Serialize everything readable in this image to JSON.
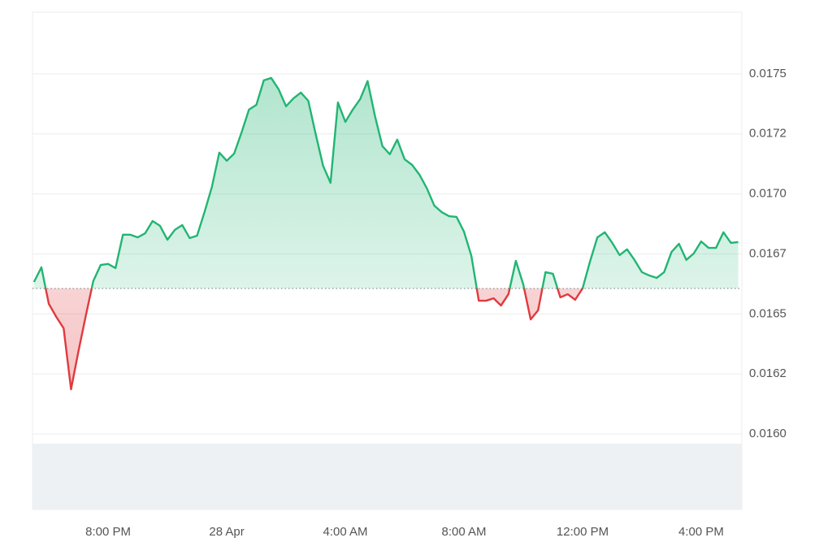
{
  "chart_data": {
    "type": "line",
    "x": [
      17.5,
      17.75,
      18,
      18.25,
      18.5,
      18.75,
      19,
      19.25,
      19.5,
      19.75,
      20,
      20.25,
      20.5,
      20.75,
      21,
      21.25,
      21.5,
      21.75,
      22,
      22.25,
      22.5,
      22.75,
      23,
      23.25,
      23.5,
      23.75,
      24,
      24.25,
      24.5,
      24.75,
      25,
      25.25,
      25.5,
      25.75,
      26,
      26.25,
      26.5,
      26.75,
      27,
      27.25,
      27.5,
      27.75,
      28,
      28.25,
      28.5,
      28.75,
      29,
      29.25,
      29.5,
      29.75,
      30,
      30.25,
      30.5,
      30.75,
      31,
      31.25,
      31.5,
      31.75,
      32,
      32.25,
      32.5,
      32.75,
      33,
      33.25,
      33.5,
      33.75,
      34,
      34.25,
      34.5,
      34.75,
      35,
      35.25,
      35.5,
      35.75,
      36,
      36.25,
      36.5,
      36.75,
      37,
      37.25,
      37.5,
      37.75,
      38,
      38.25,
      38.5,
      38.75,
      39,
      39.25,
      39.5,
      39.75,
      40,
      40.25,
      40.5,
      40.75,
      41,
      41.25
    ],
    "values": [
      0.016633,
      0.016694,
      0.016542,
      0.016488,
      0.01644,
      0.016186,
      0.016345,
      0.016494,
      0.016637,
      0.016704,
      0.016708,
      0.016691,
      0.01683,
      0.01683,
      0.016819,
      0.016836,
      0.016887,
      0.016867,
      0.016809,
      0.01685,
      0.01687,
      0.016816,
      0.016826,
      0.016924,
      0.017029,
      0.017172,
      0.017138,
      0.017168,
      0.017256,
      0.017351,
      0.017371,
      0.017473,
      0.017483,
      0.017436,
      0.017365,
      0.017398,
      0.017422,
      0.017388,
      0.017249,
      0.017117,
      0.017046,
      0.017381,
      0.0173,
      0.017351,
      0.017395,
      0.01747,
      0.017324,
      0.017199,
      0.017165,
      0.017226,
      0.017144,
      0.017121,
      0.01708,
      0.017023,
      0.016951,
      0.016924,
      0.016907,
      0.016904,
      0.016843,
      0.016742,
      0.016555,
      0.016555,
      0.016565,
      0.016535,
      0.016582,
      0.016721,
      0.016623,
      0.016477,
      0.016515,
      0.016674,
      0.016667,
      0.016569,
      0.016582,
      0.016559,
      0.016606,
      0.016718,
      0.016819,
      0.01684,
      0.016796,
      0.016745,
      0.016769,
      0.016725,
      0.016674,
      0.01666,
      0.01665,
      0.016674,
      0.016758,
      0.016792,
      0.016725,
      0.016752,
      0.016802,
      0.016775,
      0.016775,
      0.01684,
      0.016796,
      0.016799
    ],
    "baseline": 0.016606,
    "up_color": "#22b573",
    "down_color": "#e03a3e",
    "xlim": [
      17.45,
      41.37
    ],
    "xticks": [
      {
        "value": 20,
        "label": "8:00 PM"
      },
      {
        "value": 24,
        "label": "28 Apr"
      },
      {
        "value": 28,
        "label": "4:00 AM"
      },
      {
        "value": 32,
        "label": "8:00 AM"
      },
      {
        "value": 36,
        "label": "12:00 PM"
      },
      {
        "value": 40,
        "label": "4:00 PM"
      }
    ],
    "ylim": [
      0.016,
      0.017757
    ],
    "yticks": [
      {
        "value": 0.016,
        "label": "0.0160"
      },
      {
        "value": 0.01625,
        "label": "0.0162"
      },
      0.0165,
      {
        "value": 0.01675,
        "label": "0.0167"
      },
      {
        "value": 0.017,
        "label": "0.0170"
      },
      {
        "value": 0.01725,
        "label": "0.0172"
      },
      0.0175
    ],
    "grid": true
  }
}
